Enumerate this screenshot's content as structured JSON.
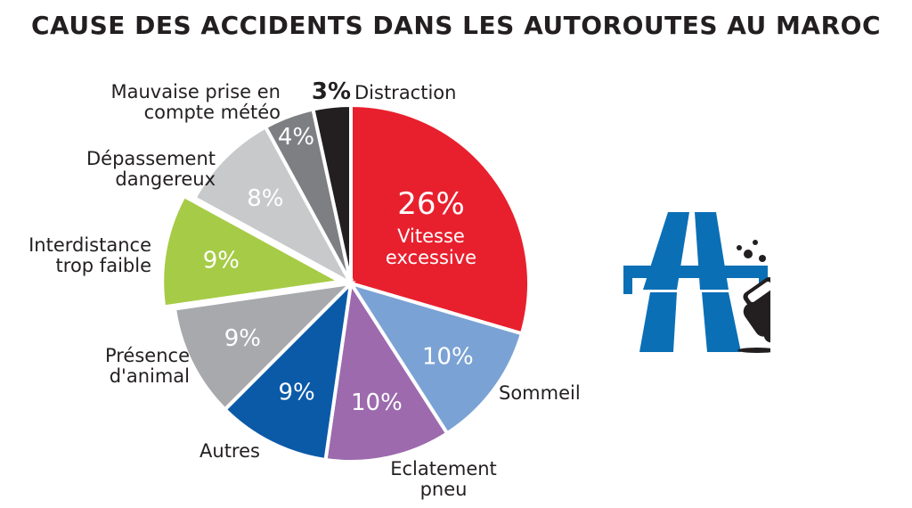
{
  "title": "CAUSE DES ACCIDENTS DANS LES AUTOROUTES AU MAROC",
  "chart_data": {
    "type": "pie",
    "title": "CAUSE DES ACCIDENTS DANS LES AUTOROUTES AU MAROC",
    "slices": [
      {
        "label": [
          "Vitesse",
          "excessive"
        ],
        "percent_text": "26%",
        "value": 26,
        "color": "#e8202e",
        "text_color": "#ffffff",
        "label_inside": true
      },
      {
        "label": [
          "Sommeil"
        ],
        "percent_text": "10%",
        "value": 10,
        "color": "#7ba2d4",
        "text_color": "#ffffff"
      },
      {
        "label": [
          "Eclatement",
          "pneu"
        ],
        "percent_text": "10%",
        "value": 10,
        "color": "#9c6aad",
        "text_color": "#ffffff"
      },
      {
        "label": [
          "Autres"
        ],
        "percent_text": "9%",
        "value": 9,
        "color": "#0b5aa8",
        "text_color": "#ffffff"
      },
      {
        "label": [
          "Présence",
          "d'animal"
        ],
        "percent_text": "9%",
        "value": 9,
        "color": "#a7a9ac",
        "text_color": "#ffffff"
      },
      {
        "label": [
          "Interdistance",
          "trop faible"
        ],
        "percent_text": "9%",
        "value": 9,
        "color": "#a6cb46",
        "text_color": "#ffffff"
      },
      {
        "label": [
          "Dépassement",
          "dangereux"
        ],
        "percent_text": "8%",
        "value": 8,
        "color": "#c8c9cb",
        "text_color": "#ffffff"
      },
      {
        "label": [
          "Mauvaise prise en",
          "compte météo"
        ],
        "percent_text": "4%",
        "value": 4,
        "color": "#7d7f82",
        "text_color": "#ffffff"
      },
      {
        "label": [
          "Distraction"
        ],
        "percent_text": "3%",
        "value": 3,
        "color": "#231f20",
        "text_color": "#231f20"
      }
    ]
  },
  "icon": "highway-crash-icon",
  "colors": {
    "icon_blue": "#0b6fb6",
    "icon_dark": "#231f20"
  }
}
